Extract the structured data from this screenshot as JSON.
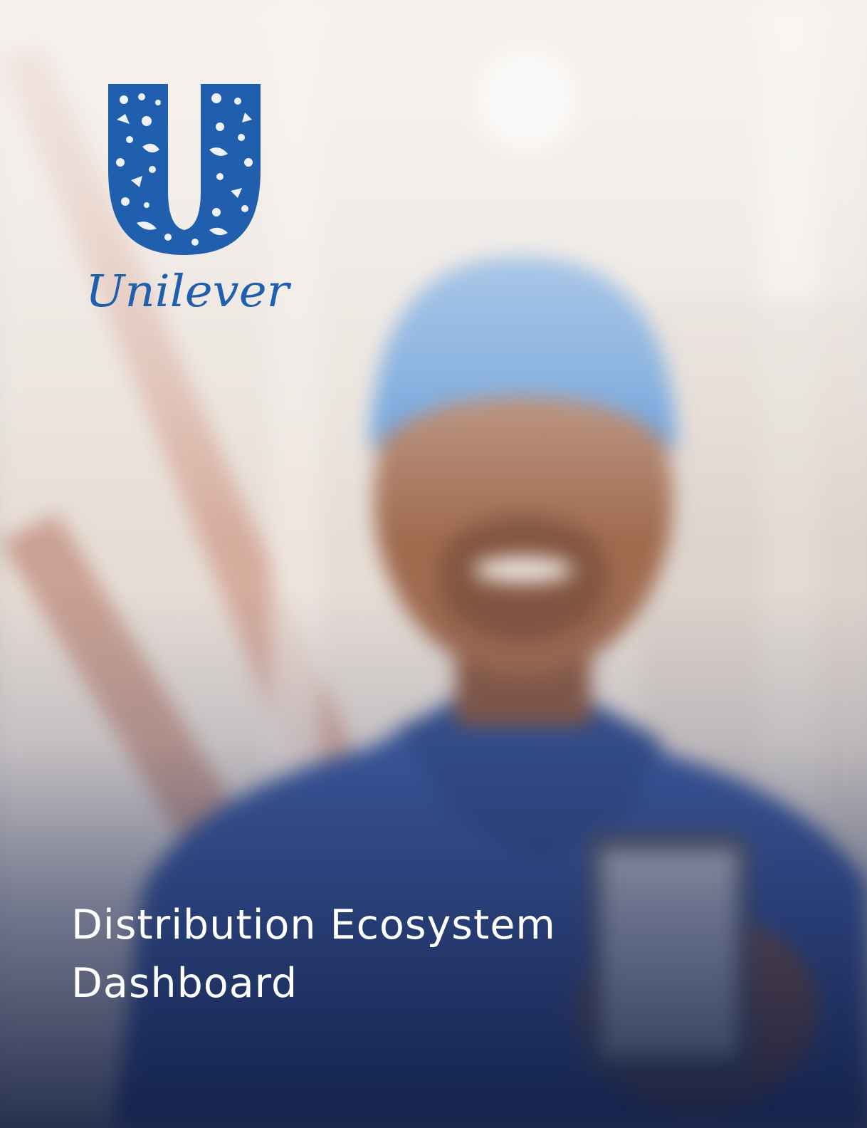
{
  "brand": {
    "name": "Unilever",
    "color": "#1f5fae"
  },
  "cover": {
    "title_line_1": "Distribution Ecosystem",
    "title_line_2": "Dashboard"
  },
  "background": {
    "description_icon": "delivery-person-with-phone-photo"
  }
}
